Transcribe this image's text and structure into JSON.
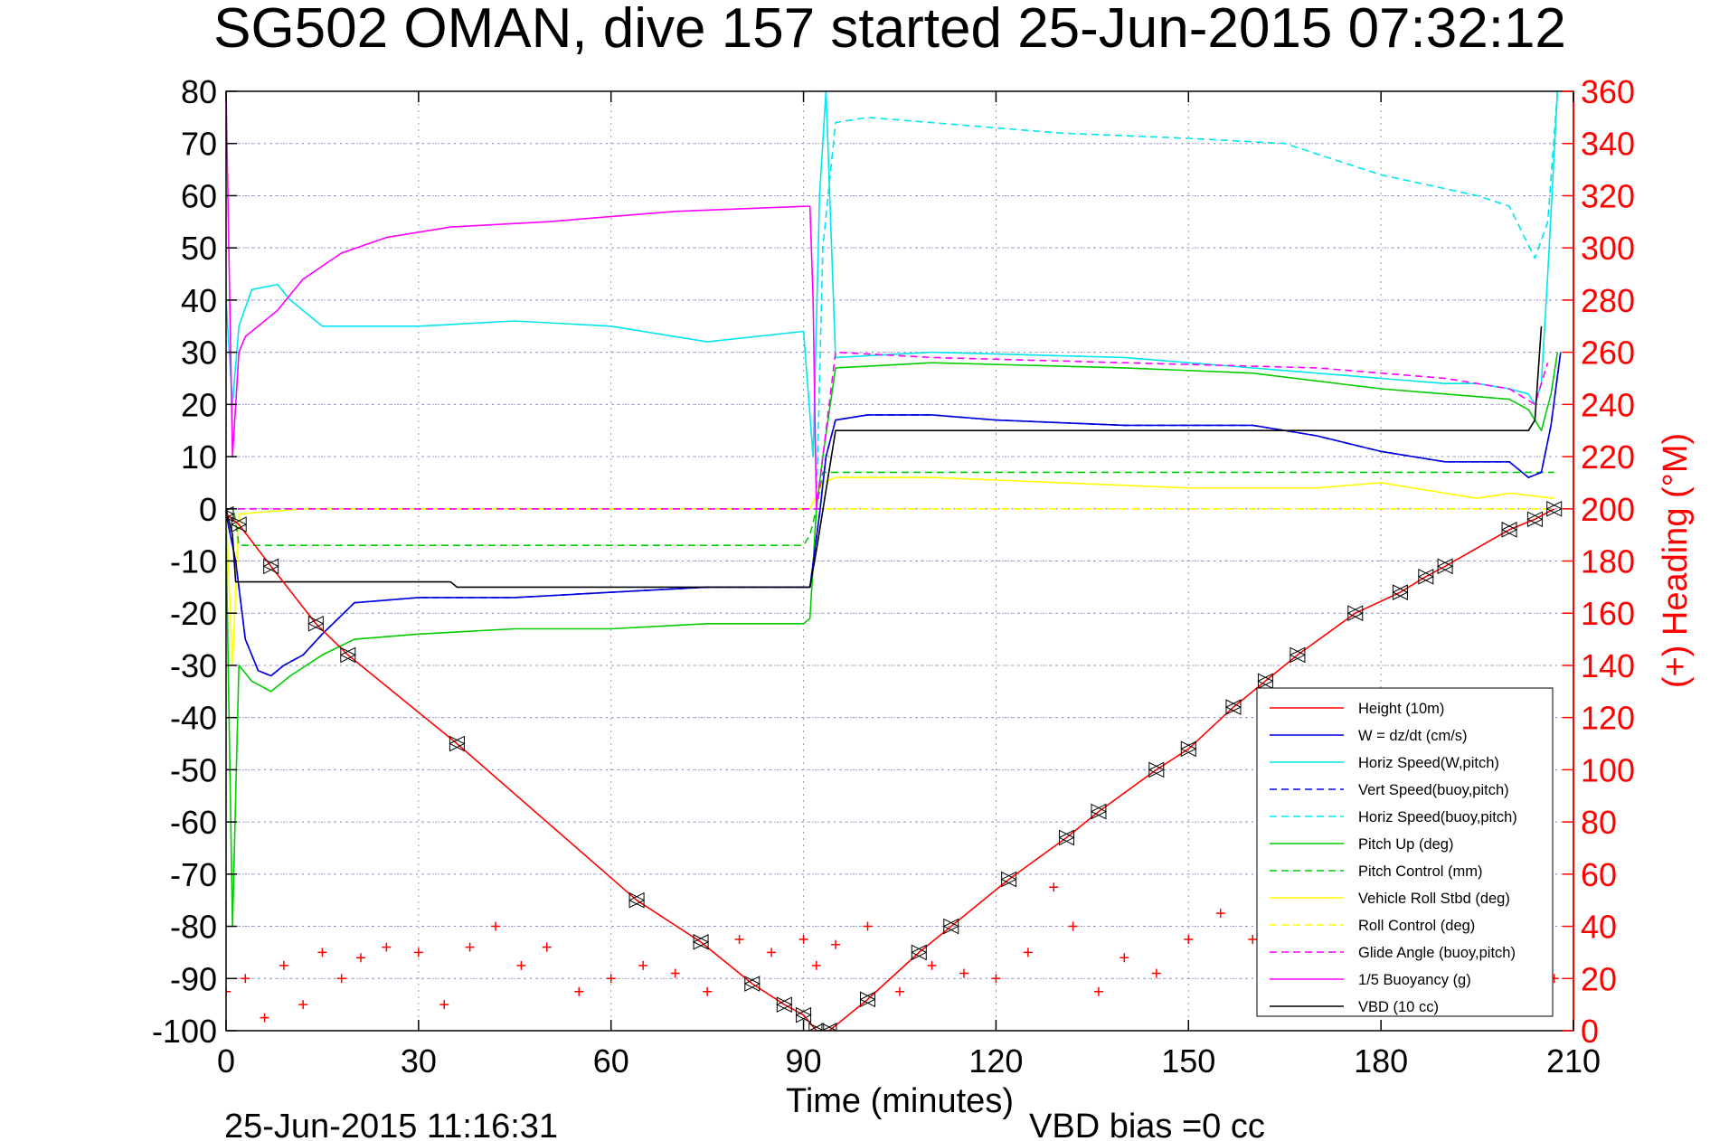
{
  "chart_data": {
    "type": "line",
    "title": "SG502 OMAN, dive 157 started 25-Jun-2015 07:32:12",
    "xlabel": "Time (minutes)",
    "ylabel": "",
    "y2label": "(+) Heading (°M)",
    "footer_left": "25-Jun-2015 11:16:31",
    "footer_right": "VBD bias =0 cc",
    "xlim": [
      0,
      210
    ],
    "ylim": [
      -100,
      80
    ],
    "y2lim": [
      0,
      360
    ],
    "xticks": [
      "0",
      "30",
      "60",
      "90",
      "120",
      "150",
      "180",
      "210"
    ],
    "yticks": [
      "80",
      "70",
      "60",
      "50",
      "40",
      "30",
      "20",
      "10",
      "0",
      "-10",
      "-20",
      "-30",
      "-40",
      "-50",
      "-60",
      "-70",
      "-80",
      "-90",
      "-100"
    ],
    "y2ticks": [
      "360",
      "340",
      "320",
      "300",
      "280",
      "260",
      "240",
      "220",
      "200",
      "180",
      "160",
      "140",
      "120",
      "100",
      "80",
      "60",
      "40",
      "20",
      "0"
    ],
    "grid": true,
    "legend_position": "bottom-right",
    "series": [
      {
        "name": "Height (10m)",
        "color": "#ff0000",
        "style": "solid",
        "axis": "left",
        "x": [
          0,
          2,
          7,
          14,
          19,
          36,
          64,
          74,
          82,
          87,
          90,
          92,
          94,
          100,
          108,
          113,
          122,
          131,
          136,
          145,
          150,
          157,
          162,
          167,
          176,
          183,
          187,
          190,
          200,
          204,
          207
        ],
        "y": [
          -1,
          -3,
          -11,
          -22,
          -28,
          -45,
          -75,
          -83,
          -91,
          -95,
          -97,
          -100,
          -100,
          -94,
          -85,
          -80,
          -71,
          -63,
          -58,
          -50,
          -46,
          -38,
          -33,
          -28,
          -20,
          -16,
          -13,
          -11,
          -4,
          -2,
          0
        ]
      },
      {
        "name": "W = dz/dt (cm/s)",
        "color": "#0000dd",
        "style": "solid",
        "axis": "left",
        "x": [
          0,
          1.5,
          3,
          5,
          7,
          9,
          12,
          15,
          20,
          30,
          45,
          60,
          75,
          91,
          92.5,
          93.5,
          95,
          100,
          110,
          120,
          140,
          160,
          170,
          180,
          190,
          195,
          200,
          203,
          205,
          206.5,
          208
        ],
        "y": [
          -1,
          -10,
          -25,
          -31,
          -32,
          -30,
          -28,
          -24,
          -18,
          -17,
          -17,
          -16,
          -15,
          -15,
          -1,
          10,
          17,
          18,
          18,
          17,
          16,
          16,
          14,
          11,
          9,
          9,
          9,
          6,
          7,
          16,
          30
        ]
      },
      {
        "name": "Horiz Speed(W,pitch)",
        "color": "#00e5ee",
        "style": "solid",
        "axis": "left",
        "x": [
          0,
          1,
          2,
          4,
          8,
          10,
          15,
          30,
          45,
          60,
          75,
          90,
          91.5,
          92.5,
          93.5,
          95,
          110,
          140,
          180,
          190,
          195,
          200,
          203,
          204,
          205,
          206,
          207.5
        ],
        "y": [
          40,
          20,
          35,
          42,
          43,
          40,
          35,
          35,
          36,
          35,
          32,
          34,
          10,
          60,
          80,
          29,
          30,
          29,
          25,
          24,
          24,
          23,
          22,
          20,
          24,
          45,
          80
        ]
      },
      {
        "name": "Vert Speed(buoy,pitch)",
        "color": "#0000ff",
        "style": "dashed",
        "axis": "left",
        "x": [
          0,
          1.5,
          3,
          5,
          7,
          9,
          12,
          15,
          20,
          30,
          45,
          60,
          75,
          91,
          92.5,
          93.5,
          95,
          100,
          110,
          120,
          140,
          160,
          170,
          180,
          190,
          195,
          200,
          203,
          205,
          206.5,
          208
        ],
        "y": [
          -1,
          -10,
          -25,
          -31,
          -32,
          -30,
          -28,
          -24,
          -18,
          -17,
          -17,
          -16,
          -15,
          -15,
          -1,
          10,
          17,
          18,
          18,
          17,
          16,
          16,
          14,
          11,
          9,
          9,
          9,
          6,
          7,
          16,
          30
        ]
      },
      {
        "name": "Horiz Speed(buoy,pitch)",
        "color": "#00e5ee",
        "style": "dashed",
        "axis": "left",
        "x": [
          0,
          92,
          93,
          95,
          100,
          110,
          130,
          150,
          165,
          180,
          195,
          200,
          204,
          206,
          207.5
        ],
        "y": [
          0,
          0,
          50,
          74,
          75,
          74,
          72,
          71,
          70,
          64,
          60,
          58,
          48,
          55,
          80
        ]
      },
      {
        "name": "Pitch Up (deg)",
        "color": "#00cc00",
        "style": "solid",
        "axis": "left",
        "x": [
          0,
          1,
          2,
          4,
          7,
          10,
          15,
          20,
          30,
          45,
          60,
          75,
          90,
          91,
          92,
          93,
          95,
          110,
          140,
          160,
          180,
          190,
          200,
          203,
          205,
          206.5,
          207.5
        ],
        "y": [
          -5,
          -80,
          -30,
          -33,
          -35,
          -32,
          -28,
          -25,
          -24,
          -23,
          -23,
          -22,
          -22,
          -21,
          0,
          10,
          27,
          28,
          27,
          26,
          23,
          22,
          21,
          19,
          15,
          22,
          30
        ]
      },
      {
        "name": "Pitch Control (mm)",
        "color": "#00cc00",
        "style": "dashed",
        "axis": "left",
        "x": [
          0,
          1.2,
          2,
          90,
          91,
          92,
          93,
          207
        ],
        "y": [
          0,
          0,
          -7,
          -7,
          -5,
          0,
          7,
          7
        ]
      },
      {
        "name": "Vehicle Roll Stbd (deg)",
        "color": "#ffff00",
        "style": "solid",
        "axis": "left",
        "x": [
          0,
          1,
          2,
          12,
          25,
          40,
          60,
          80,
          90,
          91,
          93,
          95,
          110,
          130,
          150,
          170,
          180,
          190,
          195,
          200,
          207
        ],
        "y": [
          0,
          -30,
          -1,
          0,
          0,
          0,
          0,
          0,
          0,
          0,
          5,
          6,
          6,
          5,
          4,
          4,
          5,
          3,
          2,
          3,
          2
        ]
      },
      {
        "name": "Roll Control (deg)",
        "color": "#ffff00",
        "style": "dashed",
        "axis": "left",
        "x": [
          0,
          207
        ],
        "y": [
          0,
          0
        ]
      },
      {
        "name": "Glide Angle (buoy,pitch)",
        "color": "#ff00ff",
        "style": "dashed",
        "axis": "left",
        "x": [
          0,
          92,
          93,
          95,
          110,
          140,
          170,
          190,
          200,
          204,
          206
        ],
        "y": [
          0,
          0,
          10,
          30,
          29,
          28,
          27,
          25,
          23,
          20,
          28
        ]
      },
      {
        "name": "1/5 Buoyancy (g)",
        "color": "#ff00ff",
        "style": "solid",
        "axis": "left",
        "x": [
          0,
          1,
          2,
          3,
          5,
          8,
          12,
          18,
          25,
          35,
          50,
          70,
          91,
          91.5,
          92,
          92.5
        ],
        "y": [
          80,
          10,
          30,
          33,
          35,
          38,
          44,
          49,
          52,
          54,
          55,
          57,
          58,
          40,
          0,
          0
        ]
      },
      {
        "name": "VBD (10 cc)",
        "color": "#000000",
        "style": "solid",
        "axis": "left",
        "x": [
          0,
          1,
          1.5,
          35,
          36,
          91,
          92,
          95,
          96,
          203,
          204,
          205
        ],
        "y": [
          0,
          -5,
          -14,
          -14,
          -15,
          -15,
          -8,
          15,
          15,
          15,
          17,
          35
        ]
      },
      {
        "name": "Heading",
        "color": "#ff0000",
        "style": "markers",
        "axis": "right",
        "x": [
          0,
          3,
          6,
          9,
          12,
          15,
          18,
          21,
          25,
          30,
          34,
          38,
          42,
          46,
          50,
          55,
          60,
          65,
          70,
          75,
          80,
          85,
          90,
          92,
          95,
          100,
          105,
          110,
          115,
          120,
          125,
          129,
          132,
          136,
          140,
          145,
          150,
          155,
          160,
          165,
          170,
          175,
          180,
          185,
          190,
          195,
          200,
          204,
          207
        ],
        "y": [
          15,
          20,
          5,
          25,
          10,
          30,
          20,
          28,
          32,
          30,
          10,
          32,
          40,
          25,
          32,
          15,
          20,
          25,
          22,
          15,
          35,
          30,
          35,
          25,
          33,
          40,
          15,
          25,
          22,
          20,
          30,
          55,
          40,
          15,
          28,
          22,
          35,
          45,
          35,
          10,
          20,
          28,
          25,
          30,
          20,
          15,
          25,
          30,
          20
        ]
      }
    ]
  }
}
